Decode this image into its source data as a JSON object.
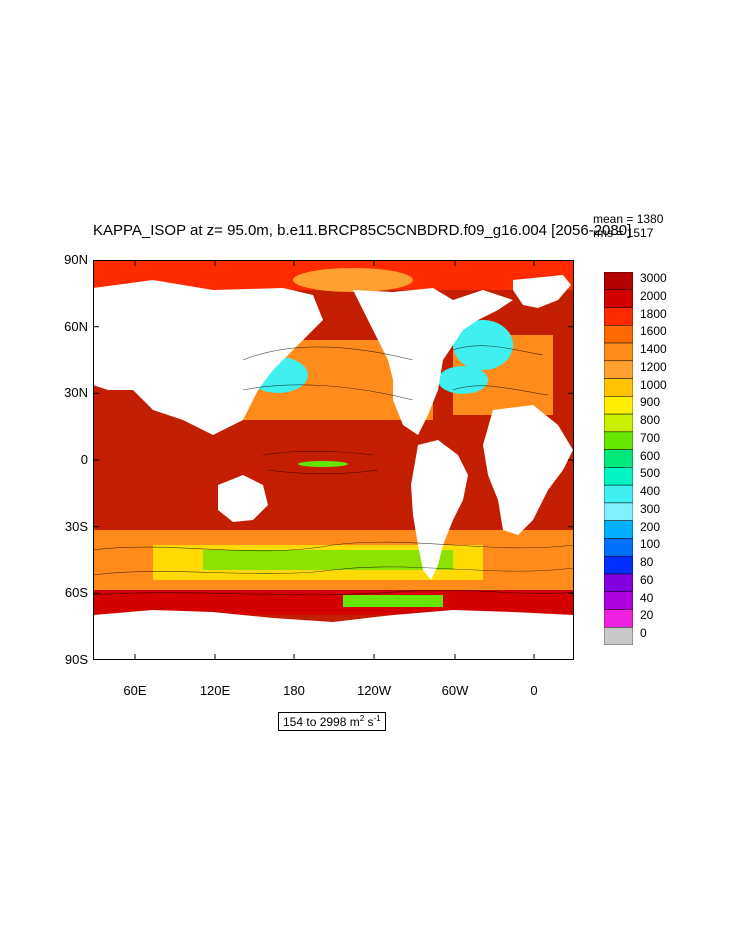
{
  "title": "KAPPA_ISOP at z=  95.0m, b.e11.BRCP85C5CNBDRD.f09_g16.004 [2056-2080]",
  "stats": {
    "mean": "mean = 1380",
    "rms": "rms = 1517"
  },
  "range": {
    "prefix": "154 to 2998 m",
    "exp1": "2",
    "mid": " s",
    "exp2": "-1"
  },
  "y_ticks": [
    "90N",
    "60N",
    "30N",
    "0",
    "30S",
    "60S",
    "90S"
  ],
  "x_ticks": [
    "60E",
    "120E",
    "180",
    "120W",
    "60W",
    "0"
  ],
  "colorbar": {
    "labels": [
      "3000",
      "2000",
      "1800",
      "1600",
      "1400",
      "1200",
      "1000",
      "900",
      "800",
      "700",
      "600",
      "500",
      "400",
      "300",
      "200",
      "100",
      "80",
      "60",
      "40",
      "20",
      "0"
    ],
    "colors": [
      "#b30000",
      "#d40000",
      "#ff2a00",
      "#ff6a00",
      "#ff8c1a",
      "#ffa030",
      "#ffc300",
      "#ffee00",
      "#c8f000",
      "#66e600",
      "#00e87a",
      "#00f5c0",
      "#40f0f0",
      "#80f0ff",
      "#00b0ff",
      "#0070ff",
      "#0030ff",
      "#8000e0",
      "#b000e0",
      "#f020e0",
      "#c8c8c8"
    ]
  },
  "map_colors": {
    "land": "#ffffff",
    "high": "#c41e00",
    "mid": "#ff8c1a",
    "low": "#66e600",
    "lowest": "#40f0f0"
  }
}
